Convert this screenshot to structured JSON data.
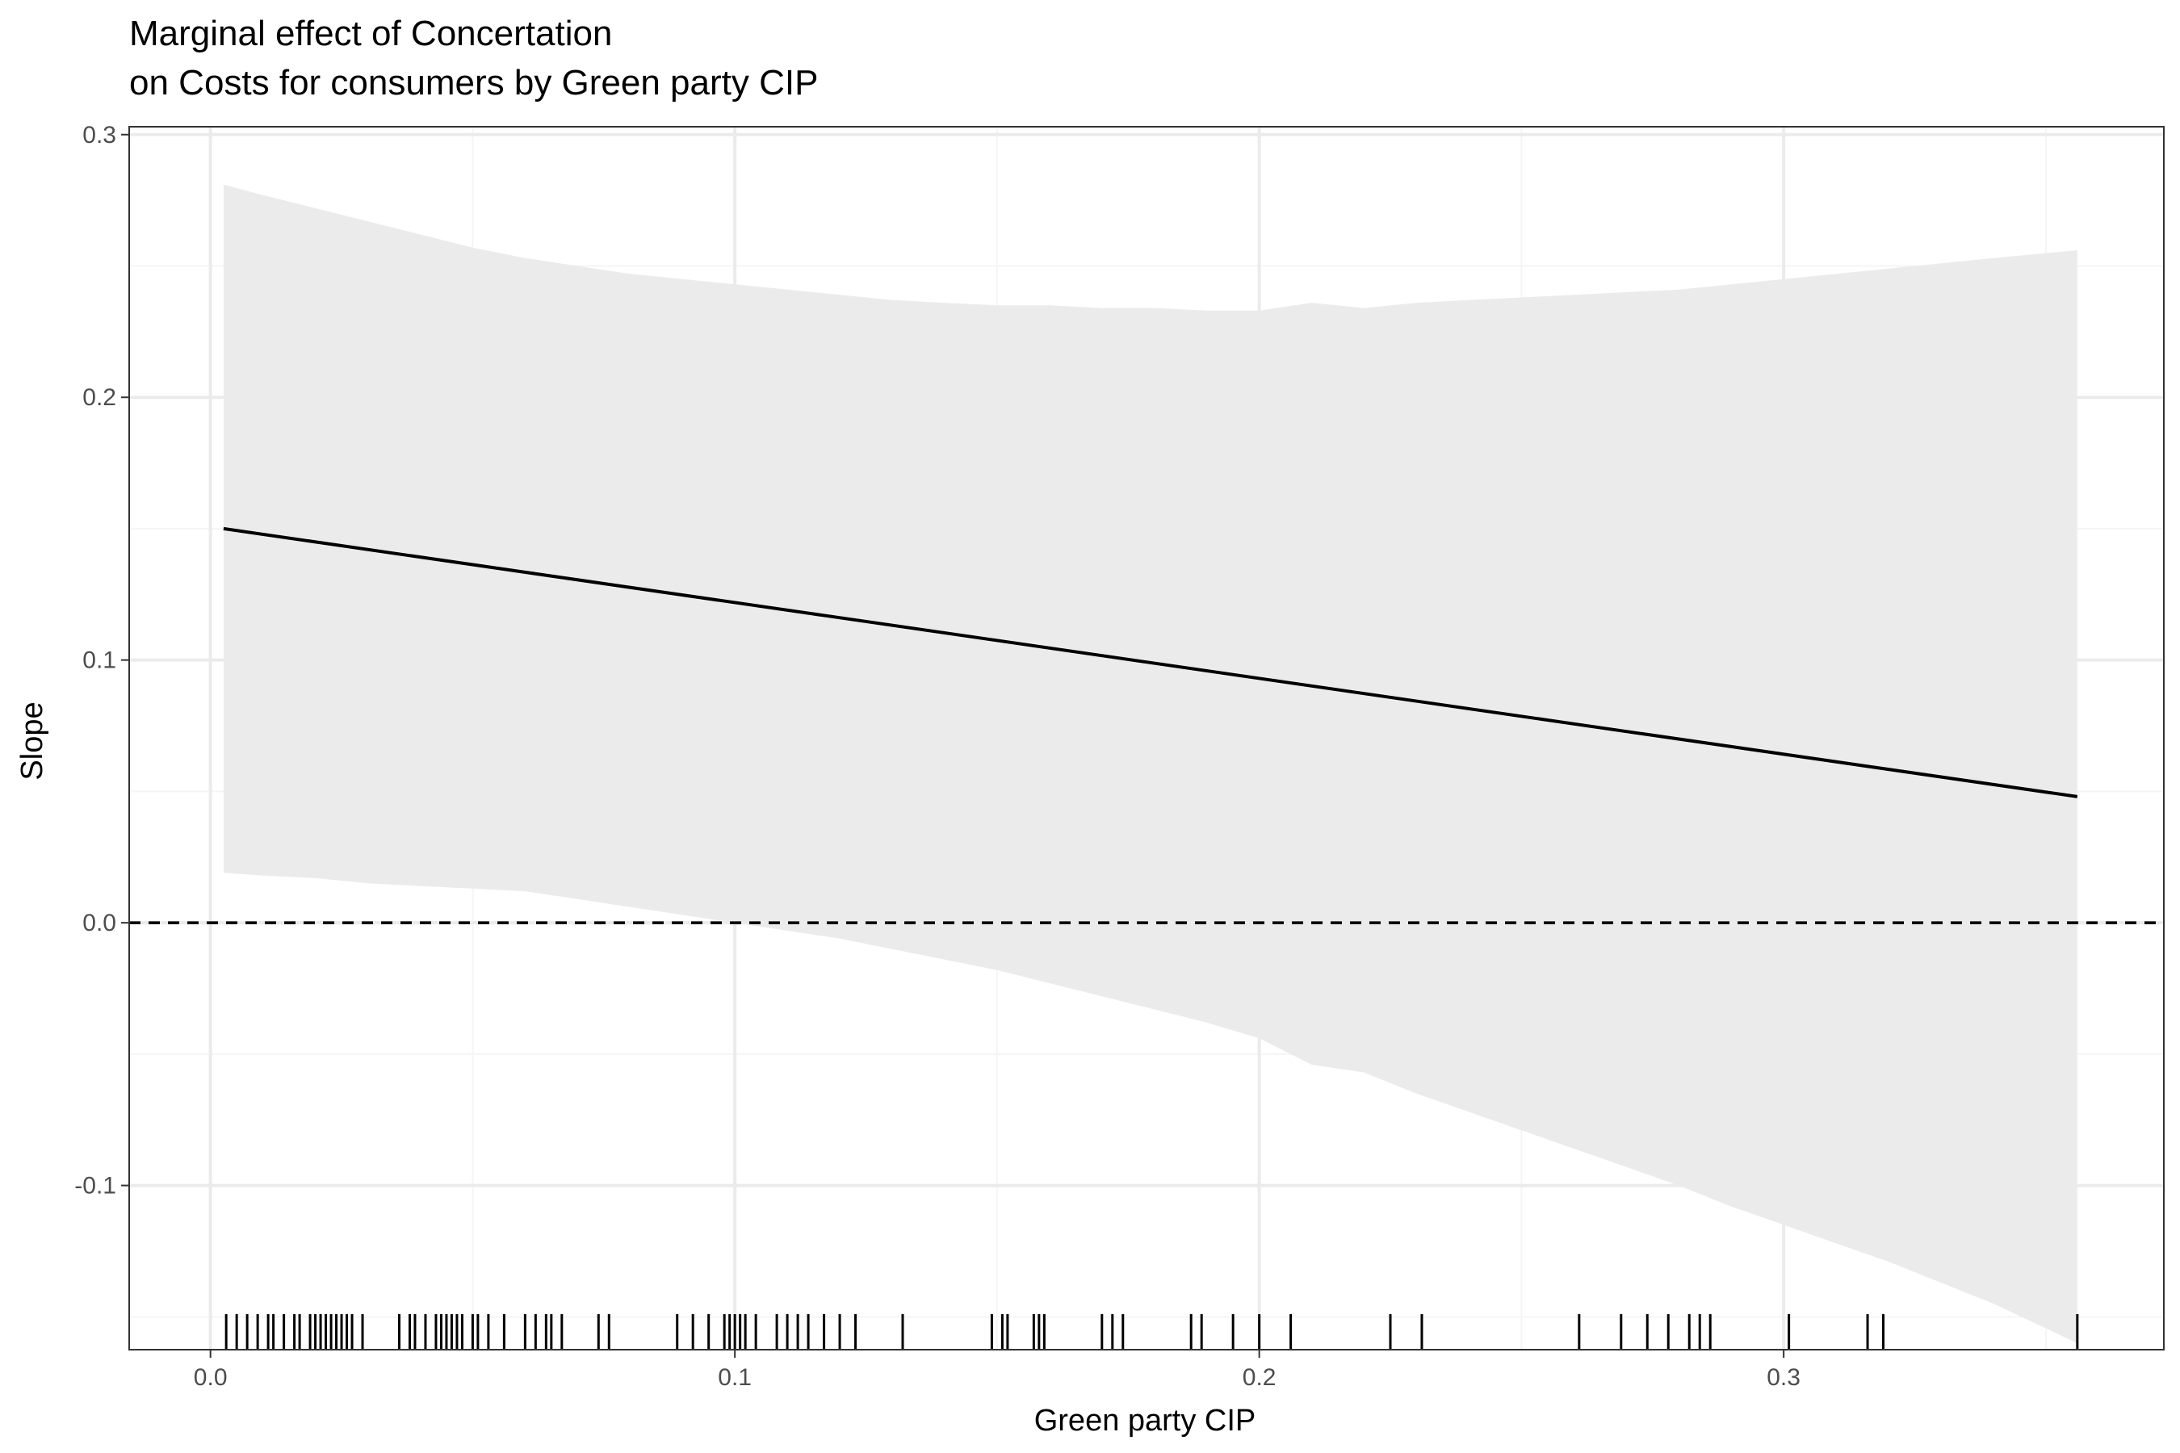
{
  "chart_data": {
    "type": "line",
    "title": "Marginal effect of Concertation",
    "subtitle": "on Costs for consumers by Green party CIP",
    "xlabel": "Green party CIP",
    "ylabel": "Slope",
    "xlim": [
      -0.0155,
      0.3725
    ],
    "ylim": [
      -0.1625,
      0.303
    ],
    "x_ticks": [
      0.0,
      0.1,
      0.2,
      0.3
    ],
    "x_tick_labels": [
      "0.0",
      "0.1",
      "0.2",
      "0.3"
    ],
    "y_ticks": [
      -0.1,
      0.0,
      0.1,
      0.2,
      0.3
    ],
    "y_tick_labels": [
      "-0.1",
      "0.0",
      "0.1",
      "0.2",
      "0.3"
    ],
    "grid": true,
    "reference_line": {
      "y": 0.0,
      "style": "dashed"
    },
    "series": [
      {
        "x": [
          0.0025,
          0.356
        ],
        "y": [
          0.15,
          0.048
        ]
      }
    ],
    "confidence_band": {
      "x": [
        0.0025,
        0.01,
        0.02,
        0.03,
        0.04,
        0.05,
        0.06,
        0.07,
        0.08,
        0.09,
        0.1,
        0.11,
        0.12,
        0.13,
        0.14,
        0.15,
        0.16,
        0.17,
        0.18,
        0.19,
        0.2,
        0.21,
        0.22,
        0.23,
        0.24,
        0.25,
        0.26,
        0.27,
        0.28,
        0.29,
        0.3,
        0.31,
        0.32,
        0.33,
        0.34,
        0.356
      ],
      "upper": [
        0.281,
        0.277,
        0.272,
        0.267,
        0.262,
        0.257,
        0.253,
        0.25,
        0.247,
        0.245,
        0.243,
        0.241,
        0.239,
        0.237,
        0.236,
        0.235,
        0.235,
        0.234,
        0.234,
        0.233,
        0.233,
        0.236,
        0.234,
        0.236,
        0.237,
        0.238,
        0.239,
        0.24,
        0.241,
        0.243,
        0.245,
        0.247,
        0.249,
        0.251,
        0.253,
        0.256
      ],
      "lower": [
        0.019,
        0.018,
        0.017,
        0.015,
        0.014,
        0.013,
        0.012,
        0.009,
        0.006,
        0.003,
        0.0,
        -0.003,
        -0.006,
        -0.01,
        -0.014,
        -0.018,
        -0.023,
        -0.028,
        -0.033,
        -0.038,
        -0.044,
        -0.054,
        -0.057,
        -0.065,
        -0.072,
        -0.079,
        -0.086,
        -0.093,
        -0.1,
        -0.108,
        -0.115,
        -0.122,
        -0.129,
        -0.137,
        -0.145,
        -0.16
      ]
    },
    "rug_x": [
      0.003,
      0.005,
      0.007,
      0.009,
      0.011,
      0.012,
      0.014,
      0.016,
      0.017,
      0.019,
      0.02,
      0.021,
      0.022,
      0.023,
      0.024,
      0.025,
      0.026,
      0.027,
      0.029,
      0.036,
      0.038,
      0.039,
      0.041,
      0.043,
      0.044,
      0.045,
      0.046,
      0.047,
      0.048,
      0.05,
      0.051,
      0.053,
      0.056,
      0.06,
      0.062,
      0.064,
      0.065,
      0.067,
      0.074,
      0.076,
      0.089,
      0.092,
      0.095,
      0.098,
      0.099,
      0.1,
      0.101,
      0.102,
      0.104,
      0.108,
      0.11,
      0.112,
      0.114,
      0.117,
      0.12,
      0.123,
      0.132,
      0.149,
      0.151,
      0.152,
      0.157,
      0.158,
      0.159,
      0.17,
      0.172,
      0.174,
      0.187,
      0.189,
      0.195,
      0.2,
      0.206,
      0.225,
      0.231,
      0.261,
      0.269,
      0.274,
      0.278,
      0.282,
      0.284,
      0.286,
      0.301,
      0.316,
      0.319,
      0.356
    ],
    "colors": {
      "band": "#ebebeb",
      "line": "#000000",
      "grid_major": "#ebebeb",
      "grid_minor": "#f5f5f5",
      "panel_border": "#333333",
      "tick_text": "#4d4d4d",
      "rug": "#000000"
    }
  }
}
